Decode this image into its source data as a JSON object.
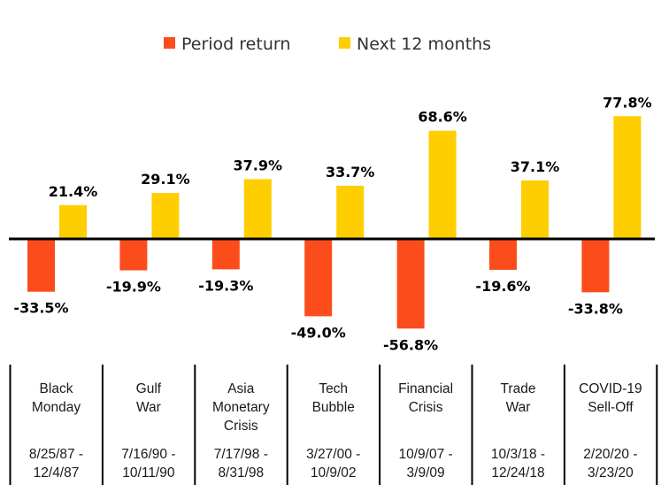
{
  "chart_data": {
    "type": "bar",
    "title": "",
    "xlabel": "",
    "ylabel": "",
    "ylim": [
      -60,
      80
    ],
    "grid": false,
    "legend_position": "top-center",
    "value_suffix": "%",
    "series": [
      {
        "name": "Period return",
        "color": "#fc4c1c",
        "values": [
          -33.5,
          -19.9,
          -19.3,
          -49.0,
          -56.8,
          -19.6,
          -33.8
        ]
      },
      {
        "name": "Next 12 months",
        "color": "#ffce00",
        "values": [
          21.4,
          29.1,
          37.9,
          33.7,
          68.6,
          37.1,
          77.8
        ]
      }
    ],
    "categories": [
      {
        "name": [
          "Black",
          "Monday"
        ],
        "dates": [
          "8/25/87 -",
          "12/4/87"
        ]
      },
      {
        "name": [
          "Gulf",
          "War"
        ],
        "dates": [
          "7/16/90 -",
          "10/11/90"
        ]
      },
      {
        "name": [
          "Asia",
          "Monetary",
          "Crisis"
        ],
        "dates": [
          "7/17/98 -",
          "8/31/98"
        ]
      },
      {
        "name": [
          "Tech",
          "Bubble"
        ],
        "dates": [
          "3/27/00 -",
          "10/9/02"
        ]
      },
      {
        "name": [
          "Financial",
          "Crisis"
        ],
        "dates": [
          "10/9/07 -",
          "3/9/09"
        ]
      },
      {
        "name": [
          "Trade",
          "War"
        ],
        "dates": [
          "10/3/18 -",
          "12/24/18"
        ]
      },
      {
        "name": [
          "COVID-19",
          "Sell-Off"
        ],
        "dates": [
          "2/20/20 -",
          "3/23/20"
        ]
      }
    ]
  }
}
